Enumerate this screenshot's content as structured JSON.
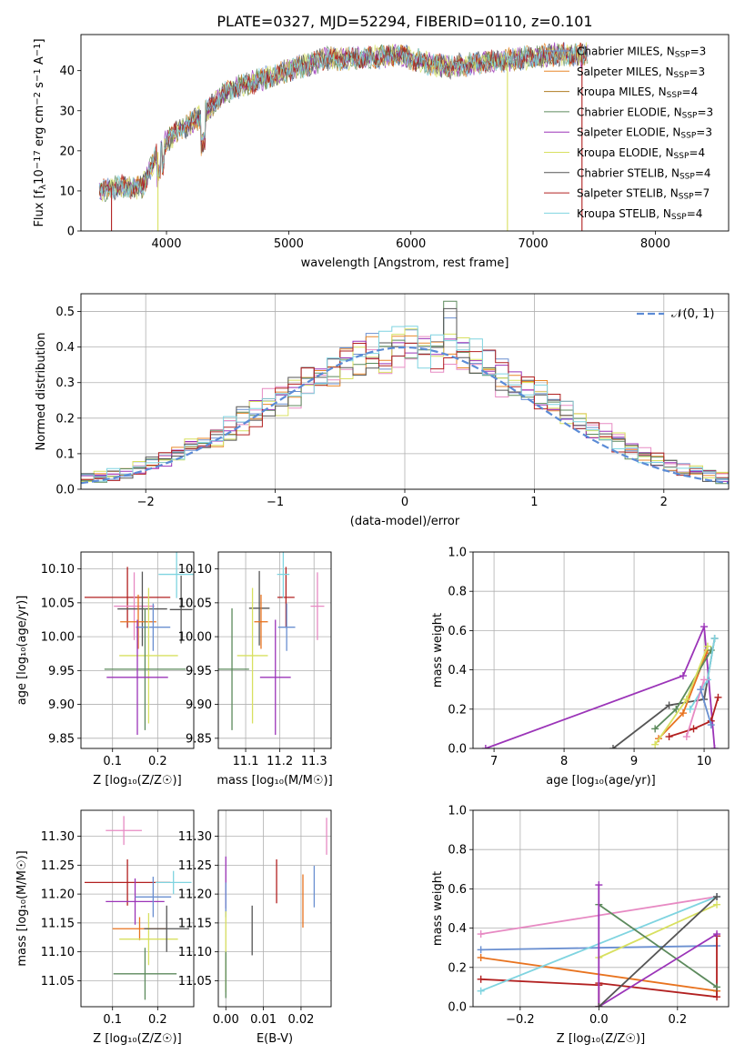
{
  "title": "PLATE=0327, MJD=52294, FIBERID=0110, z=0.101",
  "colors": {
    "Chabrier MILES": "#6a8fd0",
    "Salpeter MILES": "#e8872a",
    "Kroupa MILES": "#b07d22",
    "Chabrier ELODIE": "#5c8a5c",
    "Salpeter ELODIE": "#9b34b8",
    "Kroupa ELODIE": "#d8e060",
    "Chabrier STELIB": "#555555",
    "Salpeter STELIB": "#b22020",
    "Kroupa STELIB": "#7fd4e0",
    "Pink": "#e78ac3",
    "Orange": "#e8731f",
    "Gauss": "#5b8bd6"
  },
  "chart_data": [
    {
      "type": "line",
      "panel": "spectrum",
      "xlabel": "wavelength [Angstrom, rest frame]",
      "ylabel_parts": [
        "Flux [f",
        "λ",
        "10",
        "−17",
        " erg cm",
        "−2",
        " s",
        "−1",
        " A",
        "−1",
        "]"
      ],
      "xlim": [
        3300,
        8600
      ],
      "ylim": [
        0,
        49
      ],
      "xticks": [
        "4000",
        "5000",
        "6000",
        "7000",
        "8000"
      ],
      "yticks": [
        "0",
        "10",
        "20",
        "30",
        "40"
      ],
      "legend_position": "right",
      "series": [
        {
          "name": "Chabrier MILES, N",
          "sub": "SSP",
          "suffix": "=3"
        },
        {
          "name": "Salpeter MILES, N",
          "sub": "SSP",
          "suffix": "=3"
        },
        {
          "name": "Kroupa MILES, N",
          "sub": "SSP",
          "suffix": "=4"
        },
        {
          "name": "Chabrier ELODIE, N",
          "sub": "SSP",
          "suffix": "=3"
        },
        {
          "name": "Salpeter ELODIE, N",
          "sub": "SSP",
          "suffix": "=3"
        },
        {
          "name": "Kroupa ELODIE, N",
          "sub": "SSP",
          "suffix": "=4"
        },
        {
          "name": "Chabrier STELIB, N",
          "sub": "SSP",
          "suffix": "=4"
        },
        {
          "name": "Salpeter STELIB, N",
          "sub": "SSP",
          "suffix": "=7"
        },
        {
          "name": "Kroupa STELIB, N",
          "sub": "SSP",
          "suffix": "=4"
        }
      ],
      "continuum": [
        [
          3450,
          10
        ],
        [
          3600,
          11
        ],
        [
          3800,
          11
        ],
        [
          3950,
          21
        ],
        [
          4100,
          25
        ],
        [
          4300,
          29
        ],
        [
          4500,
          35
        ],
        [
          4700,
          37
        ],
        [
          5000,
          40
        ],
        [
          5300,
          43
        ],
        [
          5600,
          43
        ],
        [
          5900,
          44
        ],
        [
          6100,
          42
        ],
        [
          6300,
          41
        ],
        [
          6600,
          42
        ],
        [
          6900,
          43
        ],
        [
          7200,
          44
        ],
        [
          7450,
          44
        ]
      ],
      "drops": [
        {
          "x": 3550,
          "series": 7
        },
        {
          "x": 3930,
          "series": 5
        },
        {
          "x": 6790,
          "series": 5
        },
        {
          "x": 7400,
          "series": 7
        }
      ]
    },
    {
      "type": "histogram",
      "panel": "residuals",
      "xlabel": "(data-model)/error",
      "ylabel": "Normed distribution",
      "xlim": [
        -2.5,
        2.5
      ],
      "ylim": [
        0,
        0.55
      ],
      "xticks": [
        "−2",
        "−1",
        "0",
        "1",
        "2"
      ],
      "yticks": [
        "0.0",
        "0.1",
        "0.2",
        "0.3",
        "0.4",
        "0.5"
      ],
      "grid": true,
      "legend": "𝒩(0, 1)",
      "legend_position": "top-right",
      "bin_width": 0.1,
      "bin_start": -2.5
    },
    {
      "type": "scatter",
      "panel": "age-Z",
      "xlabel": "Z [log₁₀(Z/Z☉)]",
      "ylabel": "age  [log₁₀(age/yr)]",
      "xlim": [
        0.03,
        0.28
      ],
      "ylim": [
        9.835,
        10.125
      ],
      "xticks": [
        "0.1",
        "0.2"
      ],
      "yticks": [
        "9.85",
        "9.90",
        "9.95",
        "10.00",
        "10.05",
        "10.10"
      ],
      "points": [
        {
          "x": 0.133,
          "y": 10.058,
          "xerr": 0.095,
          "yerr": 0.045,
          "c": "Salpeter STELIB"
        },
        {
          "x": 0.148,
          "y": 10.045,
          "xerr": 0.045,
          "yerr": 0.05,
          "c": "Pink"
        },
        {
          "x": 0.166,
          "y": 10.041,
          "xerr": 0.055,
          "yerr": 0.055,
          "c": "Chabrier STELIB"
        },
        {
          "x": 0.157,
          "y": 10.022,
          "xerr": 0.04,
          "yerr": 0.04,
          "c": "Orange"
        },
        {
          "x": 0.19,
          "y": 10.014,
          "xerr": 0.038,
          "yerr": 0.035,
          "c": "Chabrier MILES"
        },
        {
          "x": 0.18,
          "y": 9.972,
          "xerr": 0.065,
          "yerr": 0.1,
          "c": "Kroupa ELODIE"
        },
        {
          "x": 0.172,
          "y": 9.952,
          "xerr": 0.09,
          "yerr": 0.09,
          "c": "Chabrier ELODIE"
        },
        {
          "x": 0.155,
          "y": 9.94,
          "xerr": 0.068,
          "yerr": 0.085,
          "c": "Salpeter ELODIE"
        },
        {
          "x": 0.242,
          "y": 10.092,
          "xerr": 0.04,
          "yerr": 0.035,
          "c": "Kroupa STELIB"
        },
        {
          "x": 0.252,
          "y": 10.04,
          "xerr": 0.025,
          "yerr": 0.05,
          "c": "Chabrier STELIB"
        }
      ]
    },
    {
      "type": "scatter",
      "panel": "age-mass",
      "xlabel": "mass [log₁₀(M/M☉)]",
      "xlim": [
        11.02,
        11.35
      ],
      "ylim": [
        9.835,
        10.125
      ],
      "xticks": [
        "11.1",
        "11.2",
        "11.3"
      ],
      "yticks": [
        "9.85",
        "9.90",
        "9.95",
        "10.00",
        "10.05",
        "10.10"
      ],
      "points": [
        {
          "x": 11.14,
          "y": 10.042,
          "xerr": 0.03,
          "yerr": 0.055,
          "c": "Chabrier STELIB"
        },
        {
          "x": 11.145,
          "y": 10.022,
          "xerr": 0.02,
          "yerr": 0.04,
          "c": "Orange"
        },
        {
          "x": 11.218,
          "y": 10.058,
          "xerr": 0.025,
          "yerr": 0.045,
          "c": "Salpeter STELIB"
        },
        {
          "x": 11.22,
          "y": 10.014,
          "xerr": 0.025,
          "yerr": 0.035,
          "c": "Chabrier MILES"
        },
        {
          "x": 11.31,
          "y": 10.045,
          "xerr": 0.02,
          "yerr": 0.05,
          "c": "Pink"
        },
        {
          "x": 11.21,
          "y": 10.092,
          "xerr": 0.018,
          "yerr": 0.035,
          "c": "Kroupa STELIB"
        },
        {
          "x": 11.12,
          "y": 9.972,
          "xerr": 0.045,
          "yerr": 0.1,
          "c": "Kroupa ELODIE"
        },
        {
          "x": 11.06,
          "y": 9.952,
          "xerr": 0.05,
          "yerr": 0.09,
          "c": "Chabrier ELODIE"
        },
        {
          "x": 11.187,
          "y": 9.94,
          "xerr": 0.045,
          "yerr": 0.085,
          "c": "Salpeter ELODIE"
        }
      ]
    },
    {
      "type": "line",
      "panel": "weight-age",
      "xlabel": "age  [log₁₀(age/yr)]",
      "ylabel": "mass weight",
      "xlim": [
        6.7,
        10.35
      ],
      "ylim": [
        0,
        1
      ],
      "xticks": [
        "7",
        "8",
        "9",
        "10"
      ],
      "yticks": [
        "0.0",
        "0.2",
        "0.4",
        "0.6",
        "0.8",
        "1.0"
      ],
      "grid": true,
      "series": [
        {
          "c": "Salpeter ELODIE",
          "pts": [
            [
              6.88,
              0.0
            ],
            [
              9.7,
              0.37
            ],
            [
              10.0,
              0.62
            ],
            [
              10.15,
              0.0
            ]
          ]
        },
        {
          "c": "Chabrier STELIB",
          "pts": [
            [
              8.7,
              0.0
            ],
            [
              9.5,
              0.22
            ],
            [
              10.0,
              0.25
            ],
            [
              10.15,
              0.56
            ]
          ]
        },
        {
          "c": "Salpeter STELIB",
          "pts": [
            [
              9.5,
              0.06
            ],
            [
              9.85,
              0.1
            ],
            [
              10.1,
              0.14
            ],
            [
              10.2,
              0.26
            ]
          ]
        },
        {
          "c": "Orange",
          "pts": [
            [
              9.35,
              0.05
            ],
            [
              9.7,
              0.18
            ],
            [
              10.05,
              0.5
            ]
          ]
        },
        {
          "c": "Chabrier ELODIE",
          "pts": [
            [
              9.3,
              0.1
            ],
            [
              9.6,
              0.2
            ],
            [
              10.1,
              0.5
            ]
          ]
        },
        {
          "c": "Kroupa ELODIE",
          "pts": [
            [
              9.3,
              0.02
            ],
            [
              9.75,
              0.25
            ],
            [
              10.05,
              0.52
            ]
          ]
        },
        {
          "c": "Kroupa STELIB",
          "pts": [
            [
              9.8,
              0.2
            ],
            [
              10.05,
              0.35
            ],
            [
              10.15,
              0.56
            ]
          ]
        },
        {
          "c": "Pink",
          "pts": [
            [
              9.75,
              0.06
            ],
            [
              10.0,
              0.35
            ]
          ]
        },
        {
          "c": "Chabrier MILES",
          "pts": [
            [
              9.95,
              0.3
            ],
            [
              10.1,
              0.12
            ]
          ]
        }
      ]
    },
    {
      "type": "scatter",
      "panel": "mass-Z",
      "xlabel": "Z [log₁₀(Z/Z☉)]",
      "ylabel": "mass [log₁₀(M/M☉)]",
      "xlim": [
        0.03,
        0.28
      ],
      "ylim": [
        11.005,
        11.345
      ],
      "xticks": [
        "0.1",
        "0.2"
      ],
      "yticks": [
        "11.05",
        "11.10",
        "11.15",
        "11.20",
        "11.25",
        "11.30"
      ],
      "points": [
        {
          "x": 0.133,
          "y": 11.22,
          "xerr": 0.095,
          "yerr": 0.04,
          "c": "Salpeter STELIB"
        },
        {
          "x": 0.125,
          "y": 11.31,
          "xerr": 0.04,
          "yerr": 0.025,
          "c": "Pink"
        },
        {
          "x": 0.16,
          "y": 11.14,
          "xerr": 0.06,
          "yerr": 0.02,
          "c": "Orange"
        },
        {
          "x": 0.18,
          "y": 11.122,
          "xerr": 0.065,
          "yerr": 0.045,
          "c": "Kroupa ELODIE"
        },
        {
          "x": 0.15,
          "y": 11.187,
          "xerr": 0.065,
          "yerr": 0.04,
          "c": "Salpeter ELODIE"
        },
        {
          "x": 0.172,
          "y": 11.062,
          "xerr": 0.07,
          "yerr": 0.045,
          "c": "Chabrier ELODIE"
        },
        {
          "x": 0.19,
          "y": 11.195,
          "xerr": 0.04,
          "yerr": 0.035,
          "c": "Chabrier MILES"
        },
        {
          "x": 0.235,
          "y": 11.22,
          "xerr": 0.04,
          "yerr": 0.02,
          "c": "Kroupa STELIB"
        },
        {
          "x": 0.22,
          "y": 11.14,
          "xerr": 0.05,
          "yerr": 0.04,
          "c": "Chabrier STELIB"
        }
      ]
    },
    {
      "type": "scatter",
      "panel": "mass-ebv",
      "xlabel": "E(B-V)",
      "xlim": [
        -0.002,
        0.028
      ],
      "ylim": [
        11.005,
        11.345
      ],
      "xticks": [
        "0.00",
        "0.01",
        "0.02"
      ],
      "yticks": [
        "11.05",
        "11.10",
        "11.15",
        "11.20",
        "11.25",
        "11.30"
      ],
      "points": [
        {
          "x": 0.0,
          "y": 11.22,
          "yerr": 0.045,
          "c": "Salpeter ELODIE"
        },
        {
          "x": 0.0,
          "y": 11.19,
          "yerr": 0.03,
          "c": "Chabrier MILES"
        },
        {
          "x": 0.0,
          "y": 11.1,
          "yerr": 0.07,
          "c": "Kroupa ELODIE"
        },
        {
          "x": 0.0,
          "y": 11.06,
          "yerr": 0.04,
          "c": "Chabrier ELODIE"
        },
        {
          "x": 0.007,
          "y": 11.137,
          "yerr": 0.043,
          "c": "Chabrier STELIB"
        },
        {
          "x": 0.0135,
          "y": 11.222,
          "yerr": 0.038,
          "c": "Salpeter STELIB"
        },
        {
          "x": 0.0205,
          "y": 11.188,
          "yerr": 0.046,
          "c": "Orange"
        },
        {
          "x": 0.0235,
          "y": 11.213,
          "yerr": 0.036,
          "c": "Chabrier MILES"
        },
        {
          "x": 0.0268,
          "y": 11.3,
          "yerr": 0.032,
          "c": "Pink"
        }
      ]
    },
    {
      "type": "line",
      "panel": "weight-Z",
      "xlabel": "Z [log₁₀(Z/Z☉)]",
      "ylabel": "mass weight",
      "xlim": [
        -0.32,
        0.33
      ],
      "ylim": [
        0,
        1
      ],
      "xticks": [
        "−0.2",
        "0.0",
        "0.2"
      ],
      "yticks": [
        "0.0",
        "0.2",
        "0.4",
        "0.6",
        "0.8",
        "1.0"
      ],
      "grid": true,
      "series": [
        {
          "c": "Pink",
          "pts": [
            [
              -0.3,
              0.37
            ],
            [
              0.3,
              0.56
            ]
          ]
        },
        {
          "c": "Chabrier MILES",
          "pts": [
            [
              -0.3,
              0.29
            ],
            [
              0.0,
              0.3
            ],
            [
              0.3,
              0.31
            ]
          ]
        },
        {
          "c": "Orange",
          "pts": [
            [
              -0.3,
              0.25
            ],
            [
              0.3,
              0.08
            ]
          ]
        },
        {
          "c": "Salpeter STELIB",
          "pts": [
            [
              -0.3,
              0.14
            ],
            [
              0.0,
              0.11
            ],
            [
              0.0,
              0.0
            ],
            [
              0.0,
              0.12
            ],
            [
              0.3,
              0.05
            ],
            [
              0.3,
              0.36
            ]
          ]
        },
        {
          "c": "Kroupa STELIB",
          "pts": [
            [
              -0.3,
              0.08
            ],
            [
              0.3,
              0.56
            ]
          ]
        },
        {
          "c": "Kroupa ELODIE",
          "pts": [
            [
              0.0,
              0.25
            ],
            [
              0.3,
              0.52
            ]
          ]
        },
        {
          "c": "Chabrier ELODIE",
          "pts": [
            [
              0.0,
              0.52
            ],
            [
              0.3,
              0.1
            ]
          ]
        },
        {
          "c": "Salpeter ELODIE",
          "pts": [
            [
              0.0,
              0.62
            ],
            [
              0.0,
              0.0
            ],
            [
              0.3,
              0.37
            ]
          ]
        },
        {
          "c": "Chabrier STELIB",
          "pts": [
            [
              0.0,
              0.0
            ],
            [
              0.3,
              0.56
            ]
          ]
        }
      ]
    }
  ]
}
